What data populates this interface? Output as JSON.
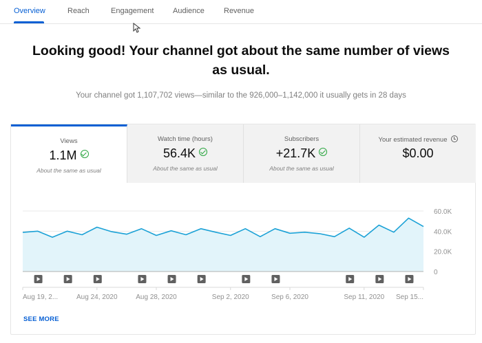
{
  "tabs": [
    {
      "label": "Overview",
      "active": true
    },
    {
      "label": "Reach",
      "active": false
    },
    {
      "label": "Engagement",
      "active": false
    },
    {
      "label": "Audience",
      "active": false
    },
    {
      "label": "Revenue",
      "active": false
    }
  ],
  "headline": "Looking good! Your channel got about the same number of views as usual.",
  "subline": "Your channel got 1,107,702 views—similar to the 926,000–1,142,000 it usually gets in 28 days",
  "metrics": [
    {
      "label": "Views",
      "value": "1.1M",
      "status_icon": "check-circle-icon",
      "note": "About the same as usual",
      "active": true
    },
    {
      "label": "Watch time (hours)",
      "value": "56.4K",
      "status_icon": "check-circle-icon",
      "note": "About the same as usual",
      "active": false
    },
    {
      "label": "Subscribers",
      "value": "+21.7K",
      "status_icon": "check-circle-icon",
      "note": "About the same as usual",
      "active": false
    },
    {
      "label": "Your estimated revenue",
      "value": "$0.00",
      "status_icon": "clock-icon",
      "note": "",
      "active": false
    }
  ],
  "colors": {
    "accent": "#065fd4",
    "line": "#1aa1d6",
    "area": "#e2f4fa",
    "check": "#2ba640"
  },
  "see_more_label": "SEE MORE",
  "chart_data": {
    "type": "area",
    "title": "Views",
    "xlabel": "",
    "ylabel": "Views",
    "ylim": [
      0,
      60000
    ],
    "y_ticks": [
      "60.0K",
      "40.0K",
      "20.0K",
      "0"
    ],
    "y_tick_values": [
      60000,
      40000,
      20000,
      0
    ],
    "x_tick_labels": [
      "Aug 19, 2...",
      "Aug 24, 2020",
      "Aug 28, 2020",
      "Sep 2, 2020",
      "Sep 6, 2020",
      "Sep 11, 2020",
      "Sep 15..."
    ],
    "x_tick_indices": [
      0,
      5,
      9,
      14,
      18,
      23,
      27
    ],
    "grid": true,
    "legend": "none",
    "categories": [
      "Aug 19",
      "Aug 20",
      "Aug 21",
      "Aug 22",
      "Aug 23",
      "Aug 24",
      "Aug 25",
      "Aug 26",
      "Aug 27",
      "Aug 28",
      "Aug 29",
      "Aug 30",
      "Aug 31",
      "Sep 1",
      "Sep 2",
      "Sep 3",
      "Sep 4",
      "Sep 5",
      "Sep 6",
      "Sep 7",
      "Sep 8",
      "Sep 9",
      "Sep 10",
      "Sep 11",
      "Sep 12",
      "Sep 13",
      "Sep 14",
      "Sep 15"
    ],
    "values": [
      38800,
      40000,
      34000,
      40000,
      36500,
      44000,
      39500,
      37000,
      42500,
      35800,
      40400,
      36500,
      42500,
      39000,
      35800,
      42500,
      34600,
      42500,
      38000,
      39000,
      37600,
      34600,
      43000,
      34000,
      46000,
      39000,
      53000,
      44600
    ],
    "video_markers_at_indices": [
      1,
      3,
      5,
      8,
      10,
      12,
      15,
      17,
      22,
      24,
      26
    ]
  }
}
